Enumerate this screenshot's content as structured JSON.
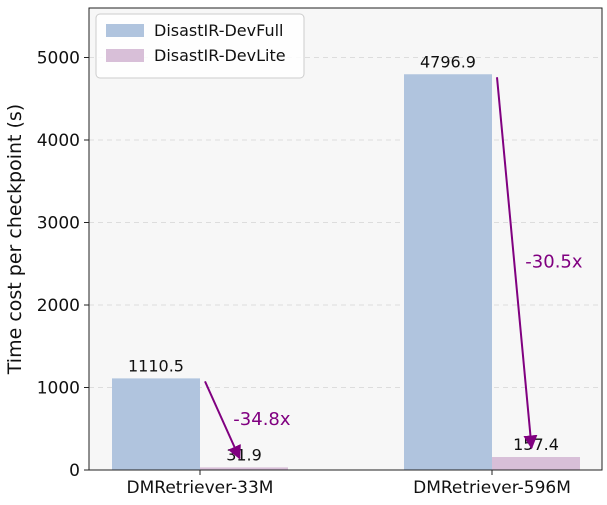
{
  "chart_data": {
    "type": "bar",
    "title": "",
    "xlabel": "",
    "ylabel": "Time cost per checkpoint (s)",
    "categories": [
      "DMRetriever-33M",
      "DMRetriever-596M"
    ],
    "series": [
      {
        "name": "DisastIR-DevFull",
        "values": [
          1110.5,
          4796.9
        ],
        "labels": [
          "1110.5",
          "4796.9"
        ],
        "color": "#b0c4de"
      },
      {
        "name": "DisastIR-DevLite",
        "values": [
          31.9,
          157.4
        ],
        "labels": [
          "31.9",
          "157.4"
        ],
        "color": "#d8bfd8"
      }
    ],
    "ylim": [
      0,
      5600
    ],
    "yticks": [
      0,
      1000,
      2000,
      3000,
      4000,
      5000
    ],
    "ytick_labels": [
      "0",
      "1000",
      "2000",
      "3000",
      "4000",
      "5000"
    ],
    "grid": true,
    "legend_position": "top-left",
    "annotations": [
      {
        "text": "-34.8x",
        "category_index": 0,
        "color": "#800080"
      },
      {
        "text": "-30.5x",
        "category_index": 1,
        "color": "#800080"
      }
    ],
    "background_color": "#f7f7f7",
    "grid_color": "#dddddd"
  }
}
